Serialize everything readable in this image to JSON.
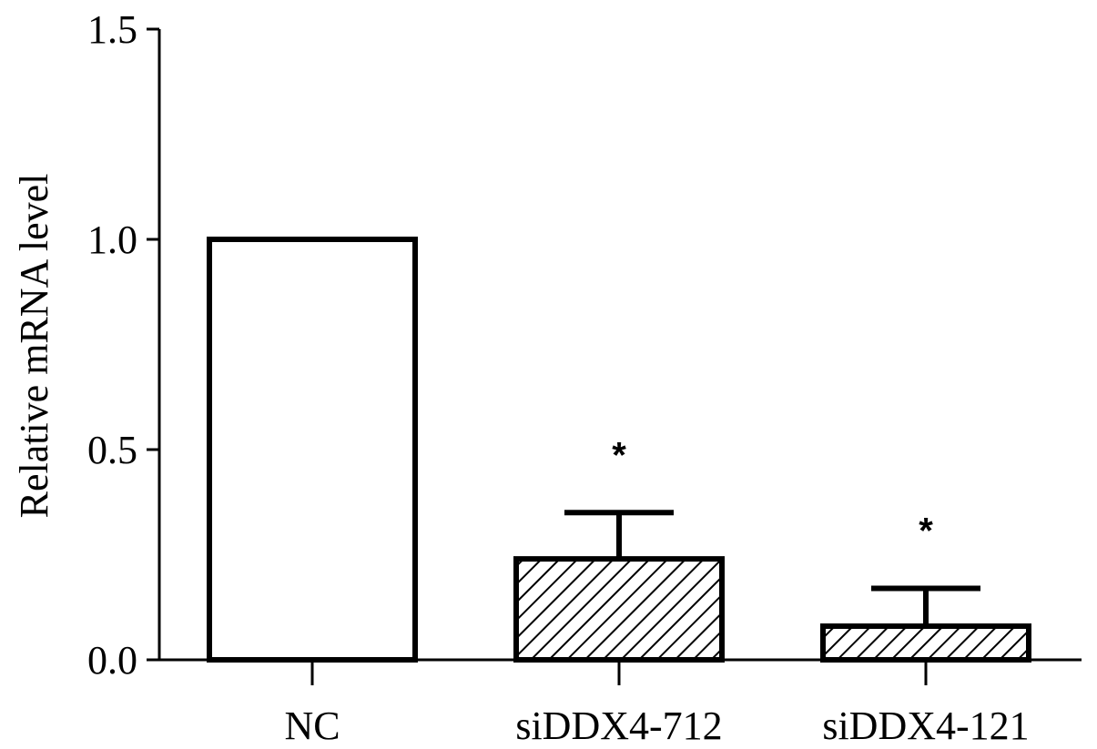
{
  "chart_data": {
    "type": "bar",
    "title": "",
    "xlabel": "",
    "ylabel": "Relative mRNA level",
    "ylim": [
      0,
      1.5
    ],
    "yticks": [
      "0.0",
      "0.5",
      "1.0",
      "1.5"
    ],
    "categories": [
      "NC",
      "siDDX4-712",
      "siDDX4-121"
    ],
    "values": [
      1.0,
      0.24,
      0.08
    ],
    "error": [
      0,
      0.11,
      0.09
    ],
    "significance": [
      "",
      "*",
      "*"
    ],
    "fills": [
      "white",
      "hatched",
      "hatched"
    ],
    "grid": false
  }
}
